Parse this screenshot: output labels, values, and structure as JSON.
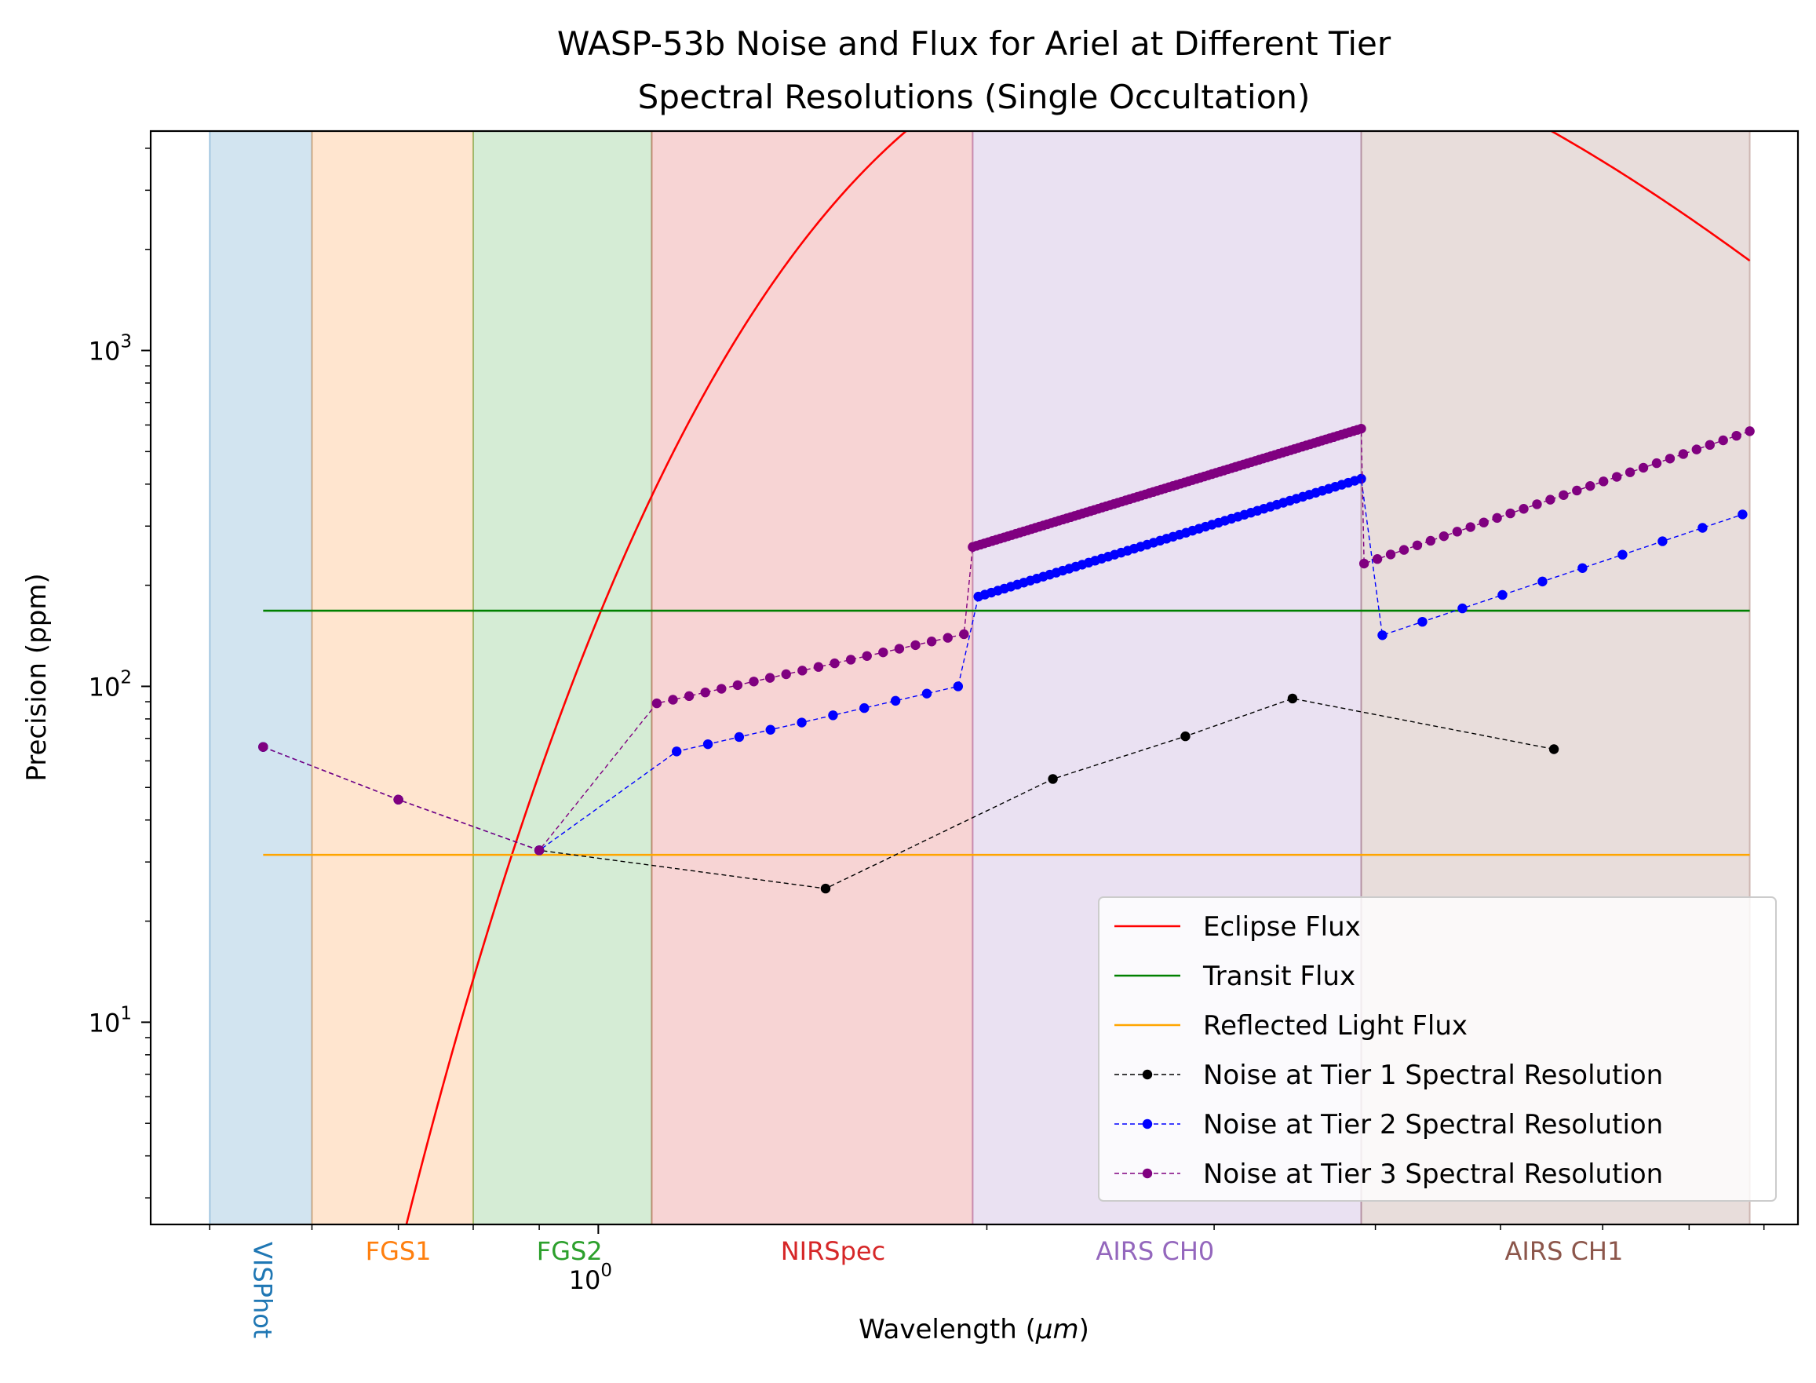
{
  "chart_data": {
    "type": "line",
    "title_lines": [
      "WASP-53b Noise and Flux for Ariel at Different Tier",
      "Spectral Resolutions (Single Occultation)"
    ],
    "xlabel_prefix": "Wavelength (",
    "xlabel_unit": "μm",
    "xlabel_suffix": ")",
    "ylabel": "Precision (ppm)",
    "x_scale": "log",
    "y_scale": "log",
    "xlim": [
      0.45,
      8.5
    ],
    "ylim": [
      2.5,
      4500
    ],
    "x_tick_labels": [
      {
        "value": 1.0,
        "base": "10",
        "exp": "0"
      }
    ],
    "y_tick_labels": [
      {
        "value": 10,
        "base": "10",
        "exp": "1"
      },
      {
        "value": 100,
        "base": "10",
        "exp": "2"
      },
      {
        "value": 1000,
        "base": "10",
        "exp": "3"
      }
    ],
    "grid": false,
    "legend_position": "lower-right",
    "bands": [
      {
        "name": "VISPhot",
        "range": [
          0.5,
          0.6
        ],
        "color": "#1f77b4",
        "label_at": 0.55,
        "rotated": true
      },
      {
        "name": "FGS1",
        "range": [
          0.6,
          0.8
        ],
        "color": "#ff7f0e",
        "label_at": 0.7
      },
      {
        "name": "FGS2",
        "range": [
          0.8,
          1.1
        ],
        "color": "#2ca02c",
        "label_at": 0.95
      },
      {
        "name": "NIRSpec",
        "range": [
          1.1,
          1.95
        ],
        "color": "#d62728",
        "label_at": 1.52
      },
      {
        "name": "AIRS CH0",
        "range": [
          1.95,
          3.9
        ],
        "color": "#9467bd",
        "label_at": 2.7
      },
      {
        "name": "AIRS CH1",
        "range": [
          3.9,
          7.8
        ],
        "color": "#8c564b",
        "label_at": 5.6
      }
    ],
    "series": [
      {
        "name": "Eclipse Flux",
        "kind": "curve",
        "color": "#ff0000",
        "x_range": [
          0.6,
          7.8
        ]
      },
      {
        "name": "Transit Flux",
        "kind": "hline",
        "color": "#008000",
        "value": 168,
        "x_range": [
          0.55,
          7.8
        ]
      },
      {
        "name": "Reflected Light Flux",
        "kind": "hline",
        "color": "#ffa500",
        "value": 31.5,
        "x_range": [
          0.55,
          7.8
        ]
      },
      {
        "name": "Noise at Tier 1 Spectral Resolution",
        "kind": "points",
        "color": "#000000",
        "x": [
          0.55,
          0.7,
          0.9,
          1.5,
          2.25,
          2.85,
          3.45,
          5.5
        ],
        "y": [
          66,
          46,
          32.5,
          25,
          53,
          71,
          92,
          65
        ]
      },
      {
        "name": "Noise at Tier 2 Spectral Resolution",
        "kind": "points",
        "color": "#0000ff",
        "segments": [
          {
            "x": [
              0.55,
              0.7,
              0.9
            ],
            "y": [
              66,
              46,
              32.5
            ]
          },
          {
            "x_from": 1.15,
            "x_to": 1.9,
            "n": 10,
            "y_from": 64,
            "y_to": 100
          },
          {
            "x_from": 1.97,
            "x_to": 3.9,
            "n": 60,
            "y_from": 185,
            "y_to": 415
          },
          {
            "x_from": 4.05,
            "x_to": 7.7,
            "n": 10,
            "y_from": 142,
            "y_to": 325
          }
        ]
      },
      {
        "name": "Noise at Tier 3 Spectral Resolution",
        "kind": "points",
        "color": "#800080",
        "segments": [
          {
            "x": [
              0.55,
              0.7,
              0.9
            ],
            "y": [
              66,
              46,
              32.5
            ]
          },
          {
            "x_from": 1.11,
            "x_to": 1.92,
            "n": 20,
            "y_from": 89,
            "y_to": 143
          },
          {
            "x_from": 1.95,
            "x_to": 3.9,
            "n": 100,
            "y_from": 260,
            "y_to": 585
          },
          {
            "x_from": 3.92,
            "x_to": 7.8,
            "n": 30,
            "y_from": 232,
            "y_to": 575
          }
        ]
      }
    ]
  }
}
